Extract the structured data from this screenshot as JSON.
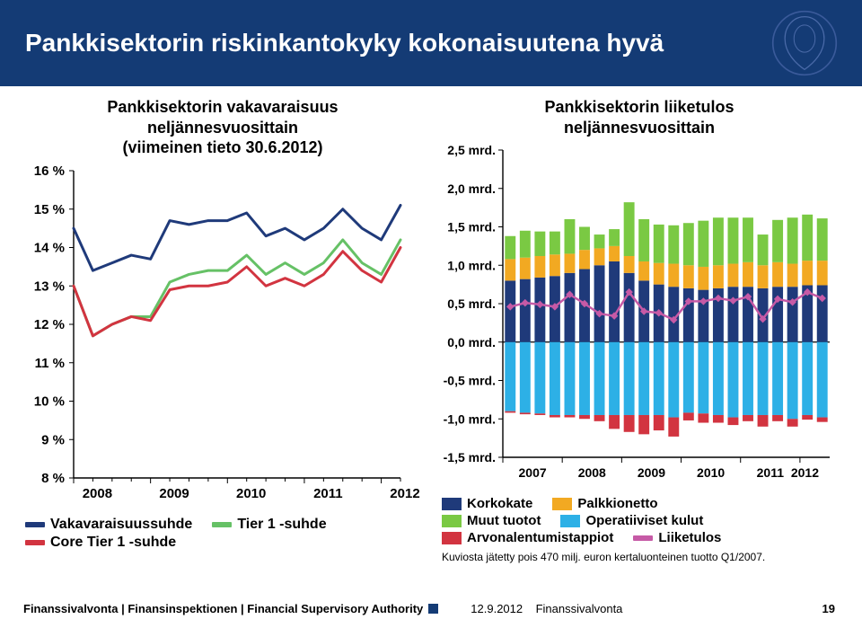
{
  "header": {
    "title": "Pankkisektorin riskinkantokyky kokonaisuutena hyvä"
  },
  "left": {
    "title_l1": "Pankkisektorin vakavaraisuus",
    "title_l2": "neljännesvuosittain",
    "title_l3": "(viimeinen tieto 30.6.2012)",
    "yticks": [
      "16 %",
      "15 %",
      "14 %",
      "13 %",
      "12 %",
      "11 %",
      "10 %",
      "9 %",
      "8 %"
    ],
    "ylim": [
      8,
      16
    ],
    "xticks": [
      "2008",
      "2009",
      "2010",
      "2011",
      "2012"
    ],
    "series": {
      "vakavaraisuus": {
        "label": "Vakavaraisuussuhde",
        "color": "#1f3a7a",
        "width": 3,
        "values": [
          14.5,
          13.4,
          13.6,
          13.8,
          13.7,
          14.7,
          14.6,
          14.7,
          14.7,
          14.9,
          14.3,
          14.5,
          14.2,
          14.5,
          15.0,
          14.5,
          14.2,
          15.1
        ]
      },
      "tier1": {
        "label": "Tier 1 -suhde",
        "color": "#66c166",
        "width": 3,
        "values": [
          13.0,
          11.7,
          12.0,
          12.2,
          12.2,
          13.1,
          13.3,
          13.4,
          13.4,
          13.8,
          13.3,
          13.6,
          13.3,
          13.6,
          14.2,
          13.6,
          13.3,
          14.2
        ]
      },
      "core": {
        "label": "Core Tier 1 -suhde",
        "color": "#d23440",
        "width": 3,
        "values": [
          13.0,
          11.7,
          12.0,
          12.2,
          12.1,
          12.9,
          13.0,
          13.0,
          13.1,
          13.5,
          13.0,
          13.2,
          13.0,
          13.3,
          13.9,
          13.4,
          13.1,
          14.0
        ]
      }
    }
  },
  "right": {
    "title_l1": "Pankkisektorin liiketulos",
    "title_l2": "neljännesvuosittain",
    "yticks": [
      "2,5 mrd.",
      "2,0 mrd.",
      "1,5 mrd.",
      "1,0 mrd.",
      "0,5 mrd.",
      "0,0 mrd.",
      "-0,5 mrd.",
      "-1,0 mrd.",
      "-1,5 mrd."
    ],
    "ylim": [
      -1.5,
      2.5
    ],
    "xticks": [
      "2007",
      "2008",
      "2009",
      "2010",
      "2011",
      "2012"
    ],
    "stack": {
      "korkokate": {
        "label": "Korkokate",
        "color": "#1f3a7a"
      },
      "palkkionetto": {
        "label": "Palkkionetto",
        "color": "#f2a922"
      },
      "muut": {
        "label": "Muut tuotot",
        "color": "#7ac943"
      },
      "operatiiviset": {
        "label": "Operatiiviset kulut",
        "color": "#2db0e6"
      },
      "arvonalent": {
        "label": "Arvonalentumistappiot",
        "color": "#d23440"
      }
    },
    "liiketulos": {
      "label": "Liiketulos",
      "color": "#c65aa6",
      "width": 2.5
    },
    "bars": [
      {
        "k": 0.8,
        "p": 0.28,
        "m": 0.3,
        "o": -0.9,
        "a": -0.02,
        "l": 0.46
      },
      {
        "k": 0.82,
        "p": 0.28,
        "m": 0.35,
        "o": -0.92,
        "a": -0.02,
        "l": 0.51
      },
      {
        "k": 0.84,
        "p": 0.28,
        "m": 0.32,
        "o": -0.93,
        "a": -0.02,
        "l": 0.49
      },
      {
        "k": 0.86,
        "p": 0.28,
        "m": 0.3,
        "o": -0.95,
        "a": -0.03,
        "l": 0.46
      },
      {
        "k": 0.9,
        "p": 0.25,
        "m": 0.45,
        "o": -0.95,
        "a": -0.03,
        "l": 0.62
      },
      {
        "k": 0.95,
        "p": 0.25,
        "m": 0.3,
        "o": -0.95,
        "a": -0.05,
        "l": 0.5
      },
      {
        "k": 1.0,
        "p": 0.22,
        "m": 0.18,
        "o": -0.95,
        "a": -0.08,
        "l": 0.37
      },
      {
        "k": 1.05,
        "p": 0.2,
        "m": 0.22,
        "o": -0.95,
        "a": -0.18,
        "l": 0.34
      },
      {
        "k": 0.9,
        "p": 0.22,
        "m": 0.7,
        "o": -0.95,
        "a": -0.22,
        "l": 0.65
      },
      {
        "k": 0.8,
        "p": 0.25,
        "m": 0.55,
        "o": -0.95,
        "a": -0.25,
        "l": 0.4
      },
      {
        "k": 0.75,
        "p": 0.28,
        "m": 0.5,
        "o": -0.95,
        "a": -0.2,
        "l": 0.38
      },
      {
        "k": 0.72,
        "p": 0.3,
        "m": 0.5,
        "o": -0.98,
        "a": -0.25,
        "l": 0.29
      },
      {
        "k": 0.7,
        "p": 0.3,
        "m": 0.55,
        "o": -0.92,
        "a": -0.1,
        "l": 0.53
      },
      {
        "k": 0.68,
        "p": 0.3,
        "m": 0.6,
        "o": -0.93,
        "a": -0.12,
        "l": 0.53
      },
      {
        "k": 0.7,
        "p": 0.3,
        "m": 0.62,
        "o": -0.95,
        "a": -0.1,
        "l": 0.57
      },
      {
        "k": 0.72,
        "p": 0.3,
        "m": 0.6,
        "o": -0.98,
        "a": -0.1,
        "l": 0.54
      },
      {
        "k": 0.72,
        "p": 0.32,
        "m": 0.58,
        "o": -0.95,
        "a": -0.08,
        "l": 0.59
      },
      {
        "k": 0.7,
        "p": 0.3,
        "m": 0.4,
        "o": -0.95,
        "a": -0.15,
        "l": 0.3
      },
      {
        "k": 0.72,
        "p": 0.32,
        "m": 0.55,
        "o": -0.95,
        "a": -0.08,
        "l": 0.56
      },
      {
        "k": 0.72,
        "p": 0.3,
        "m": 0.6,
        "o": -1.0,
        "a": -0.1,
        "l": 0.52
      },
      {
        "k": 0.74,
        "p": 0.32,
        "m": 0.6,
        "o": -0.95,
        "a": -0.06,
        "l": 0.65
      },
      {
        "k": 0.74,
        "p": 0.32,
        "m": 0.55,
        "o": -0.98,
        "a": -0.06,
        "l": 0.57
      }
    ],
    "footnote": "Kuviosta jätetty pois 470 milj. euron kertaluonteinen tuotto Q1/2007."
  },
  "footer": {
    "left": "Finanssivalvonta | Finansinspektionen | Financial Supervisory Authority",
    "date": "12.9.2012",
    "brand": "Finanssivalvonta",
    "page": "19"
  }
}
